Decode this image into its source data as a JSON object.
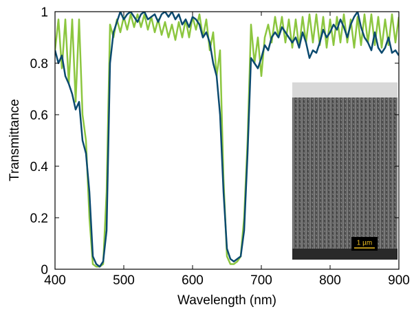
{
  "chart_data": {
    "type": "line",
    "x_label": "Wavelength (nm)",
    "y_label": "Transmittance",
    "x": [
      400,
      405,
      410,
      415,
      420,
      425,
      430,
      435,
      440,
      445,
      450,
      455,
      460,
      465,
      470,
      475,
      480,
      485,
      490,
      495,
      500,
      505,
      510,
      515,
      520,
      525,
      530,
      535,
      540,
      545,
      550,
      555,
      560,
      565,
      570,
      575,
      580,
      585,
      590,
      595,
      600,
      605,
      610,
      615,
      620,
      625,
      630,
      635,
      640,
      645,
      650,
      655,
      660,
      665,
      670,
      675,
      680,
      685,
      690,
      695,
      700,
      705,
      710,
      715,
      720,
      725,
      730,
      735,
      740,
      745,
      750,
      755,
      760,
      765,
      770,
      775,
      780,
      785,
      790,
      795,
      800,
      805,
      810,
      815,
      820,
      825,
      830,
      835,
      840,
      845,
      850,
      855,
      860,
      865,
      870,
      875,
      880,
      885,
      890,
      895,
      900
    ],
    "series": [
      {
        "color": "#8cc63f",
        "values": [
          0.85,
          0.97,
          0.78,
          0.97,
          0.72,
          0.97,
          0.65,
          0.97,
          0.6,
          0.5,
          0.2,
          0.02,
          0.01,
          0.01,
          0.02,
          0.3,
          0.95,
          0.9,
          0.97,
          0.92,
          0.98,
          0.93,
          0.99,
          0.94,
          0.99,
          0.94,
          0.99,
          0.93,
          0.98,
          0.92,
          0.97,
          0.91,
          0.96,
          0.9,
          0.95,
          0.89,
          0.96,
          0.9,
          0.97,
          0.9,
          0.98,
          0.93,
          0.99,
          0.9,
          0.97,
          0.85,
          0.92,
          0.75,
          0.85,
          0.35,
          0.05,
          0.02,
          0.02,
          0.03,
          0.05,
          0.2,
          0.5,
          0.95,
          0.8,
          0.9,
          0.75,
          0.9,
          0.95,
          0.88,
          0.98,
          0.9,
          0.98,
          0.88,
          0.97,
          0.86,
          0.97,
          0.86,
          0.98,
          0.88,
          0.99,
          0.88,
          0.99,
          0.87,
          0.98,
          0.86,
          0.97,
          0.87,
          0.98,
          0.88,
          0.99,
          0.88,
          0.97,
          0.86,
          0.98,
          0.87,
          0.99,
          0.88,
          0.99,
          0.87,
          0.98,
          0.86,
          0.97,
          0.87,
          0.99,
          0.88,
          0.98
        ]
      },
      {
        "color": "#0b4a6f",
        "values": [
          0.85,
          0.8,
          0.83,
          0.75,
          0.72,
          0.68,
          0.62,
          0.65,
          0.5,
          0.45,
          0.3,
          0.05,
          0.02,
          0.01,
          0.03,
          0.15,
          0.8,
          0.92,
          0.96,
          1.0,
          0.97,
          0.99,
          1.0,
          0.98,
          0.96,
          0.99,
          1.0,
          0.97,
          0.98,
          0.99,
          0.96,
          0.99,
          1.0,
          0.98,
          1.0,
          0.97,
          0.99,
          0.95,
          0.97,
          0.94,
          0.98,
          0.97,
          0.95,
          0.9,
          0.92,
          0.88,
          0.8,
          0.75,
          0.6,
          0.3,
          0.08,
          0.04,
          0.03,
          0.04,
          0.05,
          0.15,
          0.45,
          0.82,
          0.8,
          0.78,
          0.82,
          0.87,
          0.85,
          0.9,
          0.92,
          0.9,
          0.94,
          0.92,
          0.9,
          0.88,
          0.9,
          0.86,
          0.92,
          0.88,
          0.82,
          0.85,
          0.84,
          0.88,
          0.93,
          0.9,
          0.92,
          0.95,
          0.93,
          0.97,
          0.94,
          0.9,
          0.95,
          0.98,
          1.0,
          0.94,
          0.9,
          0.88,
          0.85,
          0.92,
          0.86,
          0.84,
          0.86,
          0.9,
          0.84,
          0.85,
          0.83
        ]
      }
    ],
    "xlim": [
      400,
      900
    ],
    "ylim": [
      0,
      1
    ],
    "xticks": [
      400,
      500,
      600,
      700,
      800,
      900
    ],
    "yticks": [
      0,
      0.2,
      0.4,
      0.6,
      0.8,
      1
    ],
    "inset_scale_label": "1 µm"
  }
}
